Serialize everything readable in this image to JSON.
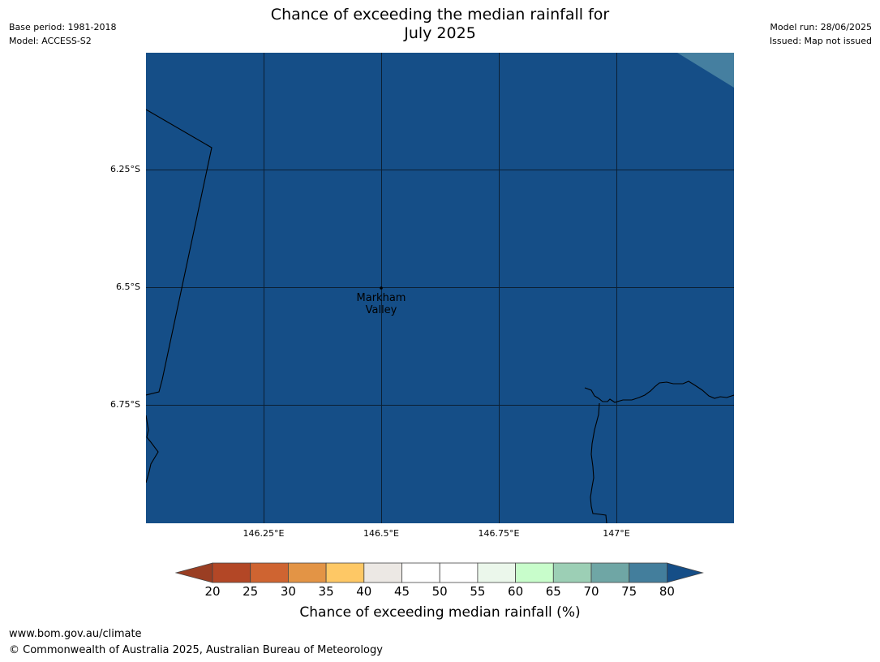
{
  "title": {
    "line1": "Chance of exceeding the median rainfall for",
    "line2": "July 2025"
  },
  "meta_left": {
    "base_period": "Base period: 1981-2018",
    "model": "Model: ACCESS-S2"
  },
  "meta_right": {
    "model_run": "Model run: 28/06/2025",
    "issued": "Issued: Map not issued"
  },
  "map": {
    "fill_color": "#154e87",
    "corner_color": "#457fa0",
    "latitude_labels": [
      "6.25°S",
      "6.5°S",
      "6.75°S"
    ],
    "longitude_labels": [
      "146.25°E",
      "146.5°E",
      "146.75°E",
      "147°E"
    ],
    "place": {
      "name_line1": "Markham",
      "name_line2": "Valley"
    }
  },
  "colorbar": {
    "bins": [
      {
        "from": 20,
        "to": 25,
        "color": "#b34726"
      },
      {
        "from": 25,
        "to": 30,
        "color": "#cf6431"
      },
      {
        "from": 30,
        "to": 35,
        "color": "#e39445"
      },
      {
        "from": 35,
        "to": 40,
        "color": "#fec865"
      },
      {
        "from": 40,
        "to": 45,
        "color": "#ece8e4"
      },
      {
        "from": 45,
        "to": 50,
        "color": "#ffffff"
      },
      {
        "from": 50,
        "to": 55,
        "color": "#ffffff"
      },
      {
        "from": 55,
        "to": 60,
        "color": "#ebf7eb"
      },
      {
        "from": 60,
        "to": 65,
        "color": "#c8fdcb"
      },
      {
        "from": 65,
        "to": 70,
        "color": "#9ccfb5"
      },
      {
        "from": 70,
        "to": 75,
        "color": "#6fa6a5"
      },
      {
        "from": 75,
        "to": 80,
        "color": "#437e9c"
      }
    ],
    "under_color": "#9a3e23",
    "over_color": "#154e87",
    "ticks": [
      "20",
      "25",
      "30",
      "35",
      "40",
      "45",
      "50",
      "55",
      "60",
      "65",
      "70",
      "75",
      "80"
    ],
    "label": "Chance of exceeding median rainfall (%)"
  },
  "footer": {
    "url": "www.bom.gov.au/climate",
    "copyright": "© Commonwealth of Australia 2025, Australian Bureau of Meteorology"
  }
}
